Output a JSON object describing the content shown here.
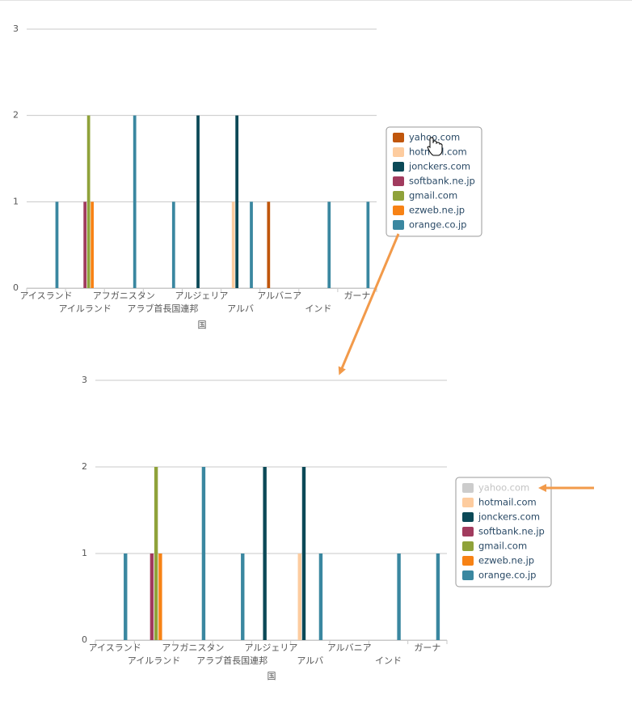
{
  "chart_data": [
    {
      "type": "bar",
      "x_label": "国",
      "categories": [
        "アイスランド",
        "アイルランド",
        "アフガニスタン",
        "アラブ首長国連邦",
        "アルジェリア",
        "アルバ",
        "アルバニア",
        "インド",
        "ガーナ"
      ],
      "ylim": [
        0,
        3
      ],
      "yticks": [
        0,
        1,
        2,
        3
      ],
      "grid": true,
      "series": [
        {
          "name": "yahoo.com",
          "color": "#c0560c",
          "values": [
            0,
            0,
            0,
            0,
            0,
            0,
            1,
            0,
            0
          ]
        },
        {
          "name": "hotmail.com",
          "color": "#fdcc9f",
          "values": [
            0,
            0,
            0,
            0,
            0,
            1,
            0,
            0,
            0
          ]
        },
        {
          "name": "jonckers.com",
          "color": "#0b4957",
          "values": [
            0,
            0,
            0,
            0,
            2,
            2,
            0,
            0,
            0
          ]
        },
        {
          "name": "softbank.ne.jp",
          "color": "#a13b5e",
          "values": [
            0,
            1,
            0,
            0,
            0,
            0,
            0,
            0,
            0
          ]
        },
        {
          "name": "gmail.com",
          "color": "#8fa23a",
          "values": [
            0,
            2,
            0,
            0,
            0,
            0,
            0,
            0,
            0
          ]
        },
        {
          "name": "ezweb.ne.jp",
          "color": "#f78215",
          "values": [
            0,
            1,
            0,
            0,
            0,
            0,
            0,
            0,
            0
          ]
        },
        {
          "name": "orange.co.jp",
          "color": "#3a87a0",
          "values": [
            1,
            0,
            2,
            1,
            0,
            1,
            0,
            1,
            1
          ]
        }
      ]
    },
    {
      "type": "bar",
      "x_label": "国",
      "categories": [
        "アイスランド",
        "アイルランド",
        "アフガニスタン",
        "アラブ首長国連邦",
        "アルジェリア",
        "アルバ",
        "アルバニア",
        "インド",
        "ガーナ"
      ],
      "ylim": [
        0,
        3
      ],
      "yticks": [
        0,
        1,
        2,
        3
      ],
      "grid": true,
      "series": [
        {
          "name": "yahoo.com",
          "color": "#c0560c",
          "hidden": true,
          "values": [
            null,
            null,
            null,
            null,
            null,
            null,
            null,
            null,
            null
          ]
        },
        {
          "name": "hotmail.com",
          "color": "#fdcc9f",
          "values": [
            0,
            0,
            0,
            0,
            0,
            1,
            0,
            0,
            0
          ]
        },
        {
          "name": "jonckers.com",
          "color": "#0b4957",
          "values": [
            0,
            0,
            0,
            0,
            2,
            2,
            0,
            0,
            0
          ]
        },
        {
          "name": "softbank.ne.jp",
          "color": "#a13b5e",
          "values": [
            0,
            1,
            0,
            0,
            0,
            0,
            0,
            0,
            0
          ]
        },
        {
          "name": "gmail.com",
          "color": "#8fa23a",
          "values": [
            0,
            2,
            0,
            0,
            0,
            0,
            0,
            0,
            0
          ]
        },
        {
          "name": "ezweb.ne.jp",
          "color": "#f78215",
          "values": [
            0,
            1,
            0,
            0,
            0,
            0,
            0,
            0,
            0
          ]
        },
        {
          "name": "orange.co.jp",
          "color": "#3a87a0",
          "values": [
            1,
            0,
            2,
            1,
            0,
            1,
            0,
            1,
            1
          ]
        }
      ]
    }
  ]
}
